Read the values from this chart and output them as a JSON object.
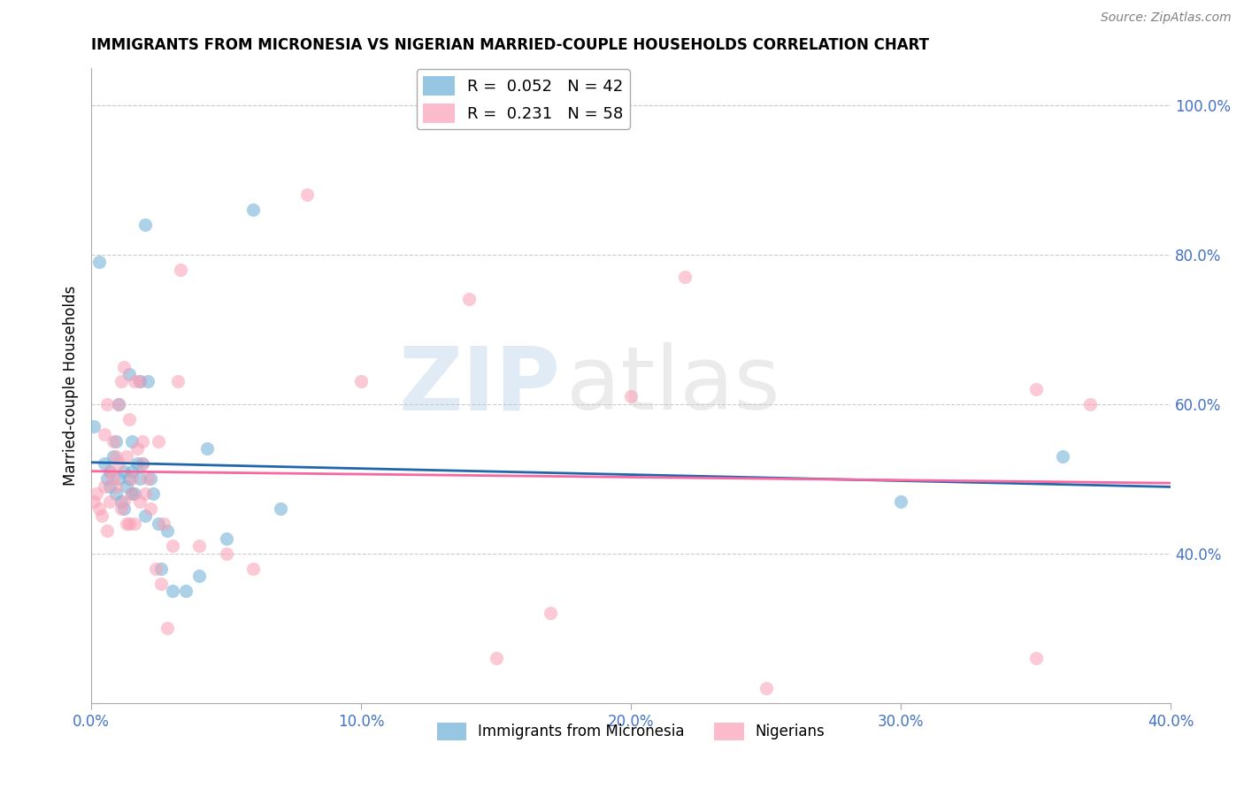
{
  "title": "IMMIGRANTS FROM MICRONESIA VS NIGERIAN MARRIED-COUPLE HOUSEHOLDS CORRELATION CHART",
  "source": "Source: ZipAtlas.com",
  "ylabel": "Married-couple Households",
  "xlim": [
    0.0,
    0.4
  ],
  "ylim": [
    0.2,
    1.05
  ],
  "color_blue": "#6baed6",
  "color_pink": "#fa9fb5",
  "color_line_blue": "#2166ac",
  "color_line_pink": "#f768a1",
  "watermark_zip": "ZIP",
  "watermark_atlas": "atlas",
  "grid_color": "#cccccc",
  "ytick_positions": [
    0.4,
    0.6,
    0.8,
    1.0
  ],
  "ytick_labels": [
    "40.0%",
    "60.0%",
    "80.0%",
    "100.0%"
  ],
  "xtick_positions": [
    0.0,
    0.1,
    0.2,
    0.3,
    0.4
  ],
  "xtick_labels": [
    "0.0%",
    "10.0%",
    "20.0%",
    "30.0%",
    "40.0%"
  ],
  "legend1_label": "R =  0.052   N = 42",
  "legend2_label": "R =  0.231   N = 58",
  "bottom_legend_labels": [
    "Immigrants from Micronesia",
    "Nigerians"
  ],
  "blue_scatter_x": [
    0.001,
    0.003,
    0.005,
    0.006,
    0.007,
    0.007,
    0.008,
    0.009,
    0.009,
    0.01,
    0.01,
    0.011,
    0.012,
    0.012,
    0.013,
    0.014,
    0.014,
    0.015,
    0.015,
    0.015,
    0.016,
    0.017,
    0.018,
    0.018,
    0.019,
    0.02,
    0.02,
    0.021,
    0.022,
    0.023,
    0.025,
    0.026,
    0.028,
    0.03,
    0.035,
    0.04,
    0.043,
    0.05,
    0.06,
    0.07,
    0.3,
    0.36
  ],
  "blue_scatter_y": [
    0.57,
    0.79,
    0.52,
    0.5,
    0.49,
    0.51,
    0.53,
    0.48,
    0.55,
    0.6,
    0.5,
    0.47,
    0.46,
    0.51,
    0.49,
    0.5,
    0.64,
    0.48,
    0.51,
    0.55,
    0.48,
    0.52,
    0.5,
    0.63,
    0.52,
    0.45,
    0.84,
    0.63,
    0.5,
    0.48,
    0.44,
    0.38,
    0.43,
    0.35,
    0.35,
    0.37,
    0.54,
    0.42,
    0.86,
    0.46,
    0.47,
    0.53
  ],
  "pink_scatter_x": [
    0.001,
    0.002,
    0.003,
    0.004,
    0.005,
    0.005,
    0.006,
    0.006,
    0.007,
    0.007,
    0.008,
    0.008,
    0.009,
    0.009,
    0.01,
    0.01,
    0.011,
    0.011,
    0.012,
    0.012,
    0.013,
    0.013,
    0.014,
    0.014,
    0.015,
    0.015,
    0.016,
    0.016,
    0.017,
    0.018,
    0.018,
    0.019,
    0.019,
    0.02,
    0.021,
    0.022,
    0.024,
    0.025,
    0.026,
    0.027,
    0.028,
    0.03,
    0.032,
    0.033,
    0.04,
    0.05,
    0.06,
    0.08,
    0.1,
    0.14,
    0.15,
    0.17,
    0.2,
    0.22,
    0.25,
    0.35,
    0.35,
    0.37
  ],
  "pink_scatter_y": [
    0.47,
    0.48,
    0.46,
    0.45,
    0.49,
    0.56,
    0.43,
    0.6,
    0.47,
    0.51,
    0.55,
    0.5,
    0.49,
    0.53,
    0.6,
    0.52,
    0.46,
    0.63,
    0.47,
    0.65,
    0.44,
    0.53,
    0.58,
    0.44,
    0.5,
    0.48,
    0.63,
    0.44,
    0.54,
    0.47,
    0.63,
    0.52,
    0.55,
    0.48,
    0.5,
    0.46,
    0.38,
    0.55,
    0.36,
    0.44,
    0.3,
    0.41,
    0.63,
    0.78,
    0.41,
    0.4,
    0.38,
    0.88,
    0.63,
    0.74,
    0.26,
    0.32,
    0.61,
    0.77,
    0.22,
    0.26,
    0.62,
    0.6
  ]
}
